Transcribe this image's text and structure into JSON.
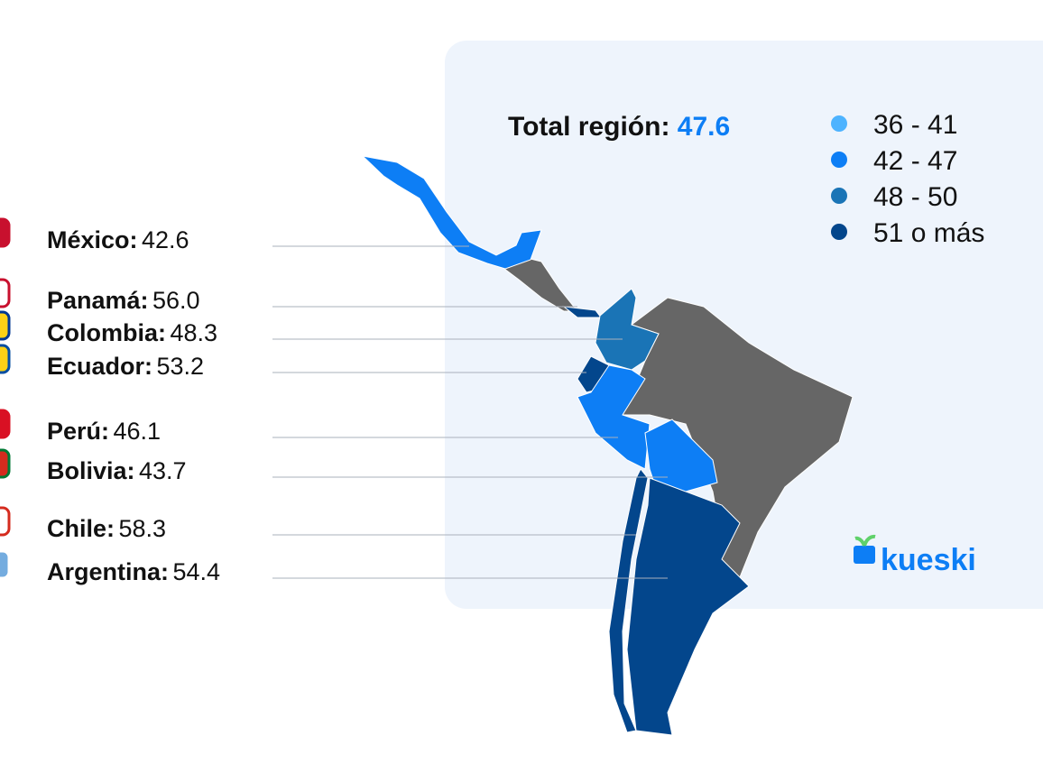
{
  "title": {
    "label": "Total región:",
    "value": "47.6"
  },
  "legend": [
    {
      "label": "36 - 41",
      "color": "#4db3ff"
    },
    {
      "label": "42 - 47",
      "color": "#0d7ef5"
    },
    {
      "label": "48 - 50",
      "color": "#1a74b6"
    },
    {
      "label": "51 o más",
      "color": "#03468c"
    }
  ],
  "countries": [
    {
      "name": "México:",
      "value": "42.6"
    },
    {
      "name": "Panamá:",
      "value": "56.0"
    },
    {
      "name": "Colombia:",
      "value": "48.3"
    },
    {
      "name": "Ecuador:",
      "value": "53.2"
    },
    {
      "name": "Perú:",
      "value": "46.1"
    },
    {
      "name": "Bolivia:",
      "value": "43.7"
    },
    {
      "name": "Chile:",
      "value": "58.3"
    },
    {
      "name": "Argentina:",
      "value": "54.4"
    }
  ],
  "logo": "kueski"
}
